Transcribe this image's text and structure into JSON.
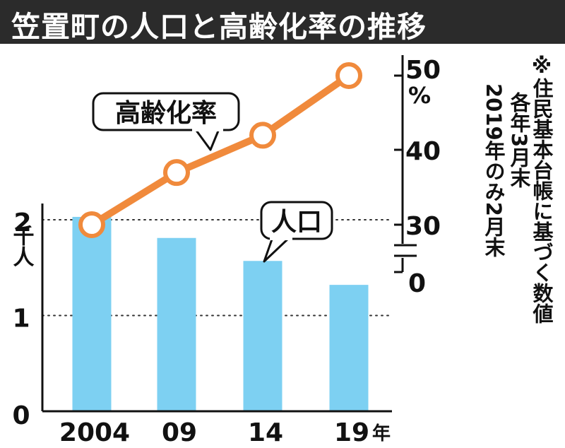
{
  "chart_data": {
    "type": "bar+line",
    "title": "笠置町の人口と高齢化率の推移",
    "categories": [
      "2004",
      "09",
      "14",
      "19"
    ],
    "x_unit": "年",
    "bars": {
      "name": "人口",
      "unit": "千人",
      "values": [
        2.03,
        1.81,
        1.57,
        1.32
      ],
      "ylim": [
        0,
        2
      ],
      "ticks": [
        "0",
        "1",
        "2"
      ],
      "color": "#7dd0f2"
    },
    "line": {
      "name": "高齢化率",
      "unit": "%",
      "values": [
        30,
        37,
        42,
        50
      ],
      "ylim": [
        30,
        50
      ],
      "ticks": [
        "0",
        "30",
        "40",
        "50"
      ],
      "color": "#f08a3c"
    },
    "grid": "dotted",
    "note": {
      "main": "※住民基本台帳に基づく数値",
      "sub1": "各年3月末",
      "sub2": "2019年のみ2月末"
    }
  }
}
